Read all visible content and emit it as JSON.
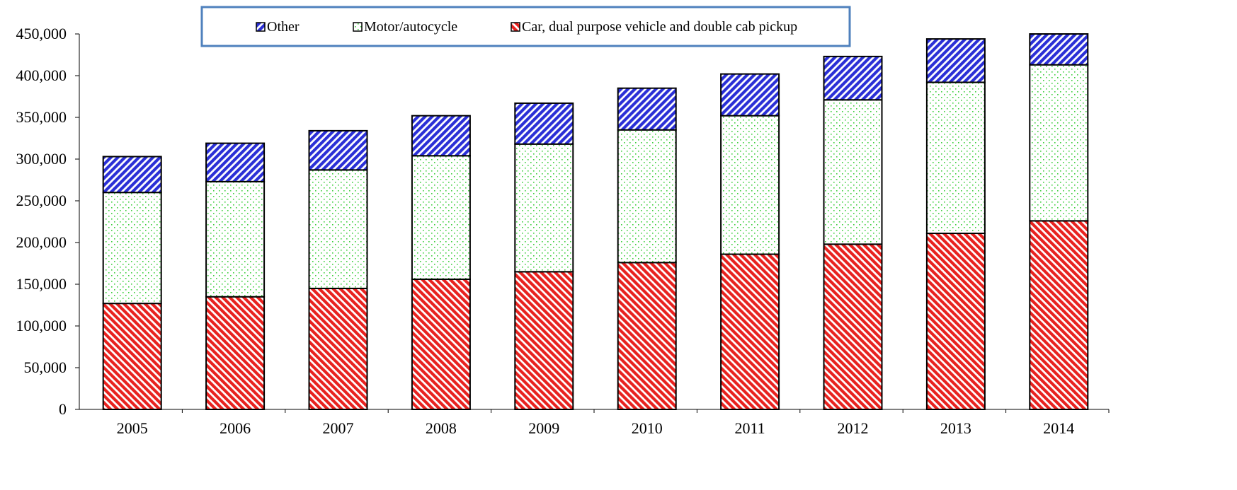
{
  "chart_data": {
    "type": "bar",
    "stacked": true,
    "title": "",
    "xlabel": "",
    "ylabel": "",
    "categories": [
      "2005",
      "2006",
      "2007",
      "2008",
      "2009",
      "2010",
      "2011",
      "2012",
      "2013",
      "2014"
    ],
    "series": [
      {
        "name": "Car, dual purpose vehicle and double cab pickup",
        "color": "#e8221f",
        "pattern": "diagonal-stripes",
        "values": [
          127000,
          135000,
          145000,
          156000,
          165000,
          176000,
          186000,
          198000,
          211000,
          226000
        ]
      },
      {
        "name": "Motor/autocycle",
        "color": "#3fcf3f",
        "pattern": "dots",
        "values": [
          133000,
          138000,
          142000,
          148000,
          153000,
          159000,
          166000,
          173000,
          181000,
          187000
        ]
      },
      {
        "name": "Other",
        "color": "#2a2fd6",
        "pattern": "diagonal-stripes",
        "values": [
          43000,
          46000,
          47000,
          48000,
          49000,
          50000,
          50000,
          52000,
          52000,
          48000
        ]
      }
    ],
    "ylim": [
      0,
      450000
    ],
    "yticks": [
      "0",
      "50,000",
      "100,000",
      "150,000",
      "200,000",
      "250,000",
      "300,000",
      "350,000",
      "400,000",
      "450,000"
    ],
    "grid": false,
    "legend": {
      "placement": "top-center",
      "order": [
        "Other",
        "Motor/autocycle",
        "Car, dual purpose vehicle and double cab pickup"
      ],
      "border_color": "#4f81bd"
    }
  }
}
